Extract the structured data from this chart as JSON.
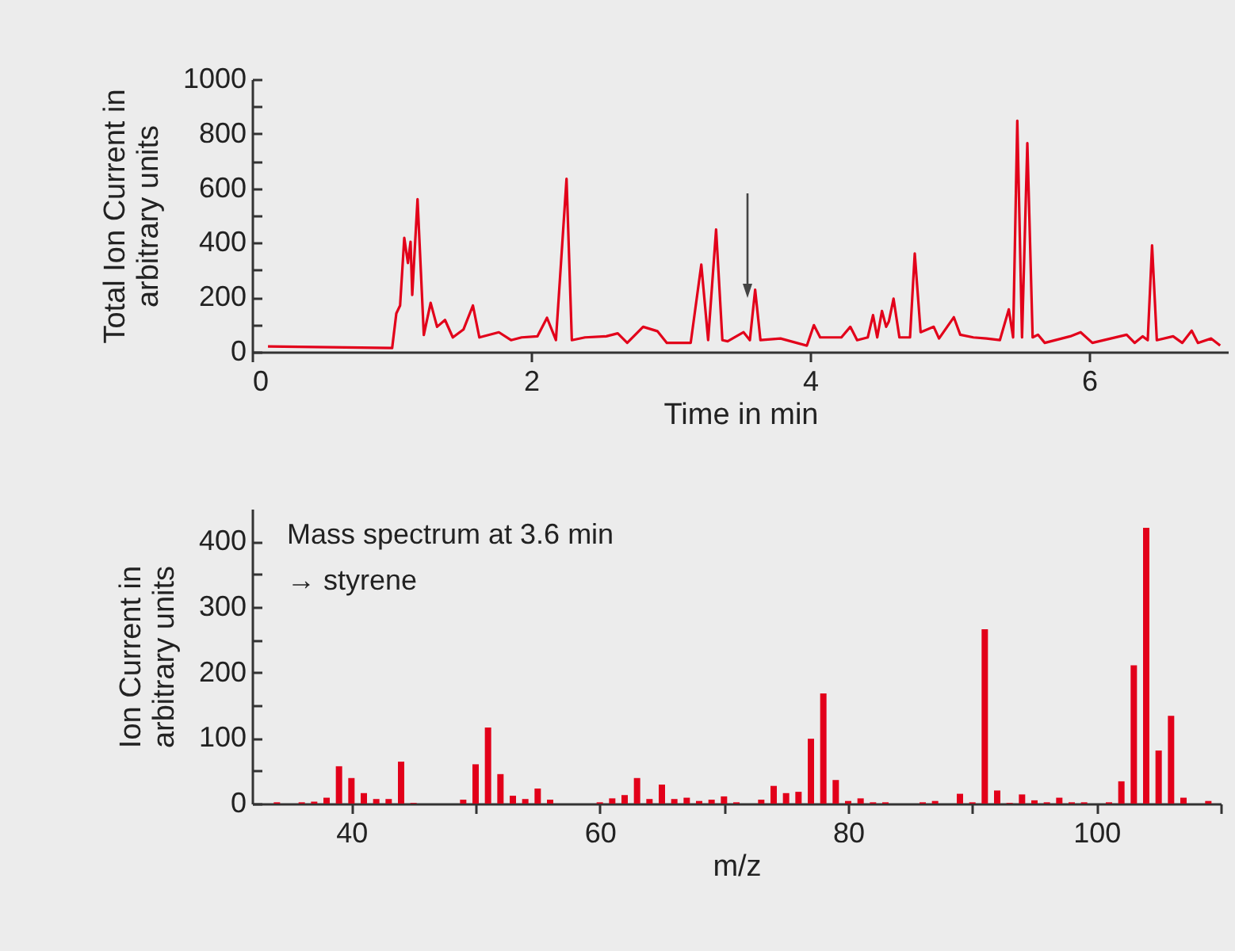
{
  "chart_data": [
    {
      "type": "line",
      "xlabel": "Time in min",
      "ylabel": "Total Ion Current in arbitrary units",
      "color": "#e2001a",
      "xlim": [
        0,
        7
      ],
      "xticks": [
        0,
        2,
        4,
        6
      ],
      "ylim": [
        0,
        1000
      ],
      "yticks": [
        0,
        {
          "value": 100,
          "label": null
        },
        200,
        {
          "value": 300,
          "label": null
        },
        400,
        {
          "value": 500,
          "label": null
        },
        600,
        {
          "value": 700,
          "label": null
        },
        800,
        {
          "value": 900,
          "label": null
        },
        1000
      ],
      "x": [
        0.114,
        1.004,
        1.034,
        1.061,
        1.091,
        1.117,
        1.136,
        1.148,
        1.186,
        1.231,
        1.28,
        1.326,
        1.383,
        1.439,
        1.515,
        1.583,
        1.629,
        1.769,
        1.856,
        1.932,
        2.045,
        2.114,
        2.178,
        2.254,
        2.292,
        2.386,
        2.538,
        2.621,
        2.689,
        2.803,
        2.905,
        2.973,
        3.144,
        3.22,
        3.269,
        3.326,
        3.371,
        3.409,
        3.523,
        3.568,
        3.606,
        3.644,
        3.788,
        3.977,
        4.027,
        4.072,
        4.224,
        4.288,
        4.337,
        4.413,
        4.451,
        4.481,
        4.515,
        4.545,
        4.564,
        4.598,
        4.64,
        4.716,
        4.75,
        4.792,
        4.886,
        4.924,
        5.03,
        5.076,
        5.17,
        5.265,
        5.36,
        5.424,
        5.455,
        5.485,
        5.519,
        5.557,
        5.595,
        5.633,
        5.682,
        5.864,
        5.939,
        6.023,
        6.269,
        6.326,
        6.383,
        6.42,
        6.451,
        6.485,
        6.602,
        6.667,
        6.735,
        6.78,
        6.875,
        6.939
      ],
      "values": [
        20,
        14,
        141,
        170,
        418,
        326,
        404,
        209,
        560,
        62,
        180,
        92,
        117,
        53,
        82,
        170,
        53,
        72,
        43,
        53,
        57,
        125,
        43,
        635,
        43,
        53,
        57,
        68,
        33,
        92,
        76,
        33,
        33,
        320,
        43,
        449,
        43,
        39,
        72,
        43,
        228,
        43,
        49,
        23,
        98,
        53,
        53,
        92,
        43,
        53,
        135,
        53,
        150,
        92,
        111,
        195,
        53,
        53,
        361,
        72,
        92,
        49,
        127,
        63,
        53,
        49,
        43,
        156,
        53,
        848,
        53,
        766,
        53,
        63,
        33,
        57,
        72,
        33,
        63,
        33,
        57,
        43,
        391,
        43,
        57,
        33,
        78,
        33,
        49,
        23
      ]
    },
    {
      "type": "bar",
      "xlabel": "m/z",
      "ylabel": "Ion Current in arbitrary units",
      "color": "#e2001a",
      "xlim": [
        32,
        110
      ],
      "xticks": [
        40,
        {
          "value": 50,
          "label": null
        },
        60,
        {
          "value": 70,
          "label": null
        },
        80,
        {
          "value": 90,
          "label": null
        },
        100,
        {
          "value": 110,
          "label": null
        }
      ],
      "ylim": [
        0,
        450
      ],
      "yticks": [
        0,
        {
          "value": 50,
          "label": null
        },
        100,
        {
          "value": 150,
          "label": null
        },
        200,
        {
          "value": 250,
          "label": null
        },
        300,
        {
          "value": 350,
          "label": null
        },
        400
      ],
      "x": [
        34,
        36,
        37,
        38,
        39,
        40,
        41,
        42,
        43,
        44,
        45,
        49,
        50,
        51,
        52,
        53,
        54,
        55,
        56,
        60,
        61,
        62,
        63,
        64,
        65,
        66,
        67,
        68,
        69,
        70,
        71,
        73,
        74,
        75,
        76,
        77,
        78,
        79,
        80,
        81,
        82,
        83,
        86,
        87,
        89,
        90,
        91,
        92,
        93,
        94,
        95,
        96,
        97,
        98,
        99,
        101,
        102,
        103,
        104,
        105,
        106,
        107,
        109
      ],
      "values": [
        2,
        2,
        3,
        9,
        57,
        39,
        16,
        7,
        7,
        64,
        1,
        6,
        60,
        116,
        45,
        12,
        7,
        23,
        6,
        2,
        8,
        13,
        39,
        7,
        29,
        7,
        9,
        4,
        6,
        11,
        2,
        6,
        27,
        16,
        18,
        99,
        168,
        36,
        4,
        8,
        2,
        2,
        2,
        4,
        15,
        2,
        266,
        20,
        1,
        14,
        5,
        2,
        9,
        2,
        2,
        2,
        34,
        211,
        421,
        81,
        134,
        9,
        4
      ],
      "annotations": [
        "Mass spectrum at 3.6 min",
        "→ styrene"
      ]
    }
  ]
}
